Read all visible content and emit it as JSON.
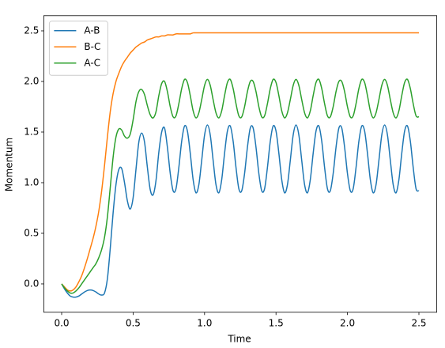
{
  "chart_data": {
    "type": "line",
    "xlabel": "Time",
    "ylabel": "Momentum",
    "x": [
      0,
      0.02,
      0.04,
      0.06,
      0.08,
      0.1,
      0.12,
      0.14,
      0.16,
      0.18,
      0.2,
      0.22,
      0.24,
      0.26,
      0.28,
      0.3,
      0.32,
      0.34,
      0.36,
      0.38,
      0.4,
      0.42,
      0.44,
      0.46,
      0.48,
      0.5,
      0.52,
      0.54,
      0.56,
      0.58,
      0.6,
      0.62,
      0.64,
      0.66,
      0.68,
      0.7,
      0.72,
      0.74,
      0.76,
      0.78,
      0.8,
      0.82,
      0.84,
      0.86,
      0.88,
      0.9,
      0.92,
      0.94,
      0.96,
      0.98,
      1,
      1.02,
      1.04,
      1.06,
      1.08,
      1.1,
      1.12,
      1.14,
      1.16,
      1.18,
      1.2,
      1.22,
      1.24,
      1.26,
      1.28,
      1.3,
      1.32,
      1.34,
      1.36,
      1.38,
      1.4,
      1.42,
      1.44,
      1.46,
      1.48,
      1.5,
      1.52,
      1.54,
      1.56,
      1.58,
      1.6,
      1.62,
      1.64,
      1.66,
      1.68,
      1.7,
      1.72,
      1.74,
      1.76,
      1.78,
      1.8,
      1.82,
      1.84,
      1.86,
      1.88,
      1.9,
      1.92,
      1.94,
      1.96,
      1.98,
      2,
      2.02,
      2.04,
      2.06,
      2.08,
      2.1,
      2.12,
      2.14,
      2.16,
      2.18,
      2.2,
      2.22,
      2.24,
      2.26,
      2.28,
      2.3,
      2.32,
      2.34,
      2.36,
      2.38,
      2.4,
      2.42,
      2.44,
      2.46,
      2.48,
      2.5
    ],
    "series": [
      {
        "name": "A-B",
        "color": "#1f77b4",
        "values": [
          0,
          -0.05,
          -0.09,
          -0.12,
          -0.13,
          -0.13,
          -0.12,
          -0.1,
          -0.08,
          -0.065,
          -0.06,
          -0.065,
          -0.08,
          -0.1,
          -0.11,
          -0.09,
          0.05,
          0.35,
          0.7,
          0.98,
          1.13,
          1.14,
          1.0,
          0.82,
          0.74,
          0.85,
          1.13,
          1.4,
          1.49,
          1.4,
          1.15,
          0.93,
          0.88,
          1.02,
          1.3,
          1.5,
          1.54,
          1.35,
          1.09,
          0.92,
          0.94,
          1.15,
          1.41,
          1.56,
          1.51,
          1.29,
          1.03,
          0.9,
          0.98,
          1.22,
          1.47,
          1.57,
          1.47,
          1.22,
          0.98,
          0.9,
          1.03,
          1.29,
          1.51,
          1.56,
          1.41,
          1.15,
          0.94,
          0.92,
          1.09,
          1.35,
          1.54,
          1.54,
          1.35,
          1.09,
          0.92,
          0.94,
          1.15,
          1.41,
          1.56,
          1.51,
          1.29,
          1.03,
          0.9,
          0.98,
          1.22,
          1.47,
          1.57,
          1.47,
          1.22,
          0.98,
          0.9,
          1.03,
          1.29,
          1.51,
          1.56,
          1.41,
          1.15,
          0.94,
          0.92,
          1.09,
          1.35,
          1.54,
          1.54,
          1.35,
          1.09,
          0.92,
          0.94,
          1.15,
          1.41,
          1.56,
          1.51,
          1.29,
          1.03,
          0.9,
          0.98,
          1.22,
          1.47,
          1.57,
          1.47,
          1.22,
          0.98,
          0.9,
          1.03,
          1.29,
          1.51,
          1.56,
          1.41,
          1.15,
          0.94,
          0.92
        ]
      },
      {
        "name": "B-C",
        "color": "#ff7f0e",
        "values": [
          0,
          -0.03,
          -0.06,
          -0.07,
          -0.06,
          -0.03,
          0.02,
          0.08,
          0.16,
          0.25,
          0.35,
          0.45,
          0.57,
          0.72,
          0.92,
          1.17,
          1.45,
          1.7,
          1.88,
          2.0,
          2.08,
          2.15,
          2.2,
          2.24,
          2.28,
          2.31,
          2.34,
          2.36,
          2.38,
          2.39,
          2.41,
          2.42,
          2.43,
          2.44,
          2.44,
          2.45,
          2.45,
          2.46,
          2.46,
          2.46,
          2.47,
          2.47,
          2.47,
          2.47,
          2.47,
          2.47,
          2.48,
          2.48,
          2.48,
          2.48,
          2.48,
          2.48,
          2.48,
          2.48,
          2.48,
          2.48,
          2.48,
          2.48,
          2.48,
          2.48,
          2.48,
          2.48,
          2.48,
          2.48,
          2.48,
          2.48,
          2.48,
          2.48,
          2.48,
          2.48,
          2.48,
          2.48,
          2.48,
          2.48,
          2.48,
          2.48,
          2.48,
          2.48,
          2.48,
          2.48,
          2.48,
          2.48,
          2.48,
          2.48,
          2.48,
          2.48,
          2.48,
          2.48,
          2.48,
          2.48,
          2.48,
          2.48,
          2.48,
          2.48,
          2.48,
          2.48,
          2.48,
          2.48,
          2.48,
          2.48,
          2.48,
          2.48,
          2.48,
          2.48,
          2.48,
          2.48,
          2.48,
          2.48,
          2.48,
          2.48,
          2.48,
          2.48,
          2.48,
          2.48,
          2.48,
          2.48,
          2.48,
          2.48,
          2.48,
          2.48,
          2.48,
          2.48,
          2.48,
          2.48,
          2.48,
          2.48
        ]
      },
      {
        "name": "A-C",
        "color": "#2ca02c",
        "values": [
          0,
          -0.04,
          -0.07,
          -0.09,
          -0.09,
          -0.07,
          -0.04,
          0,
          0.04,
          0.08,
          0.12,
          0.16,
          0.2,
          0.26,
          0.34,
          0.46,
          0.66,
          0.95,
          1.25,
          1.45,
          1.53,
          1.52,
          1.46,
          1.44,
          1.48,
          1.62,
          1.8,
          1.9,
          1.92,
          1.87,
          1.76,
          1.67,
          1.64,
          1.7,
          1.86,
          1.98,
          2.0,
          1.9,
          1.75,
          1.65,
          1.66,
          1.78,
          1.93,
          2.02,
          1.99,
          1.86,
          1.71,
          1.64,
          1.69,
          1.82,
          1.96,
          2.02,
          1.96,
          1.82,
          1.69,
          1.64,
          1.71,
          1.86,
          1.99,
          2.02,
          1.93,
          1.78,
          1.66,
          1.65,
          1.75,
          1.9,
          2.0,
          2.0,
          1.9,
          1.75,
          1.65,
          1.66,
          1.78,
          1.93,
          2.02,
          1.99,
          1.86,
          1.71,
          1.64,
          1.69,
          1.82,
          1.96,
          2.02,
          1.96,
          1.82,
          1.69,
          1.64,
          1.71,
          1.86,
          1.99,
          2.02,
          1.93,
          1.78,
          1.66,
          1.65,
          1.75,
          1.9,
          2.0,
          2.0,
          1.9,
          1.75,
          1.65,
          1.66,
          1.78,
          1.93,
          2.02,
          1.99,
          1.86,
          1.71,
          1.64,
          1.69,
          1.82,
          1.96,
          2.02,
          1.96,
          1.82,
          1.69,
          1.64,
          1.71,
          1.86,
          1.99,
          2.02,
          1.93,
          1.78,
          1.66,
          1.65
        ]
      }
    ],
    "xlim": [
      -0.125,
      2.625
    ],
    "ylim": [
      -0.28,
      2.65
    ],
    "xticks": [
      {
        "value": 0,
        "label": "0.0"
      },
      {
        "value": 0.5,
        "label": "0.5"
      },
      {
        "value": 1,
        "label": "1.0"
      },
      {
        "value": 1.5,
        "label": "1.5"
      },
      {
        "value": 2,
        "label": "2.0"
      },
      {
        "value": 2.5,
        "label": "2.5"
      }
    ],
    "yticks": [
      {
        "value": 0,
        "label": "0.0"
      },
      {
        "value": 0.5,
        "label": "0.5"
      },
      {
        "value": 1,
        "label": "1.0"
      },
      {
        "value": 1.5,
        "label": "1.5"
      },
      {
        "value": 2,
        "label": "2.0"
      },
      {
        "value": 2.5,
        "label": "2.5"
      }
    ],
    "grid": false,
    "legend": "upper left"
  }
}
